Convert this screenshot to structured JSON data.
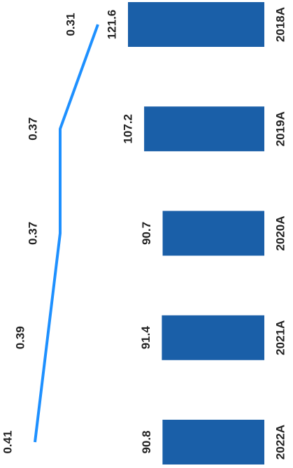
{
  "chart_data": {
    "type": "bar_line",
    "categories": [
      "2018A",
      "2019A",
      "2020A",
      "2021A",
      "2022A"
    ],
    "series": [
      {
        "type": "bar",
        "color": "#1a5fa8",
        "values": [
          121.6,
          107.2,
          90.7,
          91.4,
          90.8
        ]
      },
      {
        "type": "line",
        "color": "#1e90ff",
        "values": [
          0.31,
          0.37,
          0.37,
          0.39,
          0.41
        ]
      }
    ]
  }
}
